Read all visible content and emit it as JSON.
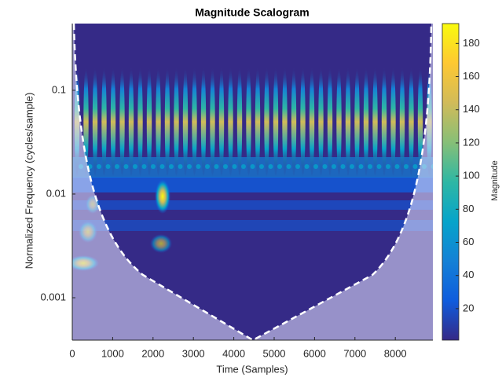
{
  "chart_data": {
    "type": "scalogram",
    "title": "Magnitude Scalogram",
    "x_label": "Time (Samples)",
    "y_label": "Normalized Frequency  (cycles/sample)",
    "colorbar_label": "Magnitude",
    "xlim": [
      0,
      8930
    ],
    "xticks": [
      0,
      1000,
      2000,
      3000,
      4000,
      5000,
      6000,
      7000,
      8000
    ],
    "ylim": [
      0.00039,
      0.44
    ],
    "yticks": [
      0.001,
      0.01,
      0.1
    ],
    "log_y": true,
    "clim": [
      1,
      192
    ],
    "cticks": [
      20,
      40,
      60,
      80,
      100,
      120,
      140,
      160,
      180
    ],
    "colormap": [
      "#352a87",
      "#0f5cdd",
      "#1481d6",
      "#06a4ca",
      "#2eb7a4",
      "#87bf77",
      "#d1bb59",
      "#fec832",
      "#f9fb0e"
    ]
  }
}
